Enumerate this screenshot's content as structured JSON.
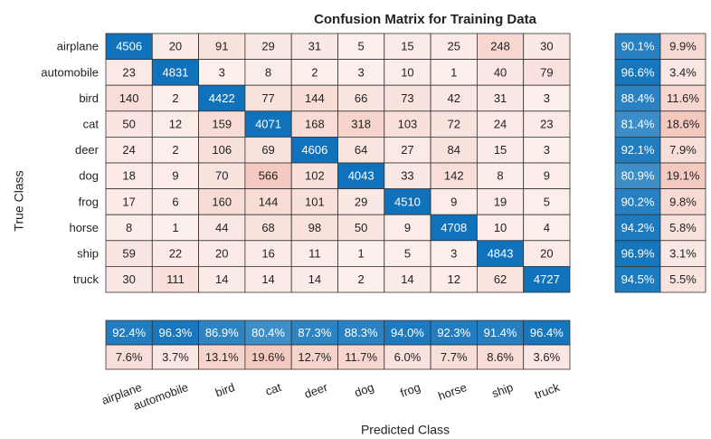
{
  "chart_data": {
    "type": "heatmap",
    "title": "Confusion Matrix for Training Data",
    "xlabel": "Predicted Class",
    "ylabel": "True Class",
    "categories": [
      "airplane",
      "automobile",
      "bird",
      "cat",
      "deer",
      "dog",
      "frog",
      "horse",
      "ship",
      "truck"
    ],
    "matrix": [
      [
        4506,
        20,
        91,
        29,
        31,
        5,
        15,
        25,
        248,
        30
      ],
      [
        23,
        4831,
        3,
        8,
        2,
        3,
        10,
        1,
        40,
        79
      ],
      [
        140,
        2,
        4422,
        77,
        144,
        66,
        73,
        42,
        31,
        3
      ],
      [
        50,
        12,
        159,
        4071,
        168,
        318,
        103,
        72,
        24,
        23
      ],
      [
        24,
        2,
        106,
        69,
        4606,
        64,
        27,
        84,
        15,
        3
      ],
      [
        18,
        9,
        70,
        566,
        102,
        4043,
        33,
        142,
        8,
        9
      ],
      [
        17,
        6,
        160,
        144,
        101,
        29,
        4510,
        9,
        19,
        5
      ],
      [
        8,
        1,
        44,
        68,
        98,
        50,
        9,
        4708,
        10,
        4
      ],
      [
        59,
        22,
        20,
        16,
        11,
        1,
        5,
        3,
        4843,
        20
      ],
      [
        30,
        111,
        14,
        14,
        14,
        2,
        14,
        12,
        62,
        4727
      ]
    ],
    "row_summary": [
      {
        "values": [
          90.1,
          96.6,
          88.4,
          81.4,
          92.1,
          80.9,
          90.2,
          94.2,
          96.9,
          94.5
        ],
        "value_labels": [
          "90.1%",
          "96.6%",
          "88.4%",
          "81.4%",
          "92.1%",
          "80.9%",
          "90.2%",
          "94.2%",
          "96.9%",
          "94.5%"
        ]
      },
      {
        "values": [
          9.9,
          3.4,
          11.6,
          18.6,
          7.9,
          19.1,
          9.8,
          5.8,
          3.1,
          5.5
        ],
        "value_labels": [
          "9.9%",
          "3.4%",
          "11.6%",
          "18.6%",
          "7.9%",
          "19.1%",
          "9.8%",
          "5.8%",
          "3.1%",
          "5.5%"
        ]
      }
    ],
    "column_summary": [
      {
        "values": [
          92.4,
          96.3,
          86.9,
          80.4,
          87.3,
          88.3,
          94,
          92.3,
          91.4,
          96.4
        ],
        "value_labels": [
          "92.4%",
          "96.3%",
          "86.9%",
          "80.4%",
          "87.3%",
          "88.3%",
          "94.0%",
          "92.3%",
          "91.4%",
          "96.4%"
        ]
      },
      {
        "values": [
          7.6,
          3.7,
          13.1,
          19.6,
          12.7,
          11.7,
          6,
          7.7,
          8.6,
          3.6
        ],
        "value_labels": [
          "7.6%",
          "3.7%",
          "13.1%",
          "19.6%",
          "12.7%",
          "11.7%",
          "6.0%",
          "7.7%",
          "8.6%",
          "3.6%"
        ]
      }
    ],
    "correct_color": "#0f72ba",
    "incorrect_color": "#f4c9c0"
  }
}
